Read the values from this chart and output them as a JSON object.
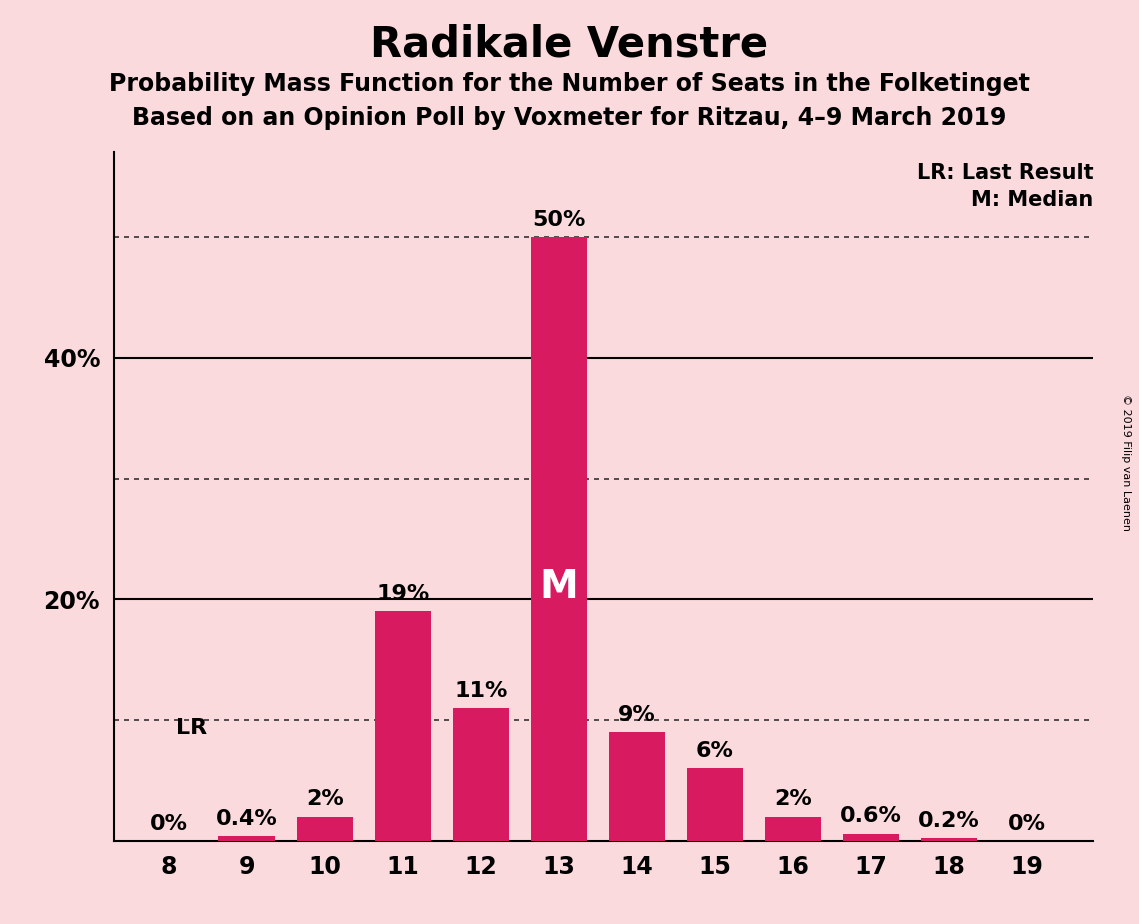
{
  "title": "Radikale Venstre",
  "subtitle1": "Probability Mass Function for the Number of Seats in the Folketinget",
  "subtitle2": "Based on an Opinion Poll by Voxmeter for Ritzau, 4–9 March 2019",
  "categories": [
    8,
    9,
    10,
    11,
    12,
    13,
    14,
    15,
    16,
    17,
    18,
    19
  ],
  "values": [
    0.0,
    0.4,
    2.0,
    19.0,
    11.0,
    50.0,
    9.0,
    6.0,
    2.0,
    0.6,
    0.2,
    0.0
  ],
  "bar_color": "#D81B60",
  "background_color": "#FADADD",
  "yticks": [
    20,
    40
  ],
  "ylim": [
    0,
    57
  ],
  "ylabel_texts": [
    "20%",
    "40%"
  ],
  "LR_seat": 8,
  "median_seat": 13,
  "LR_label": "LR",
  "median_label": "M",
  "legend_LR": "LR: Last Result",
  "legend_M": "M: Median",
  "copyright": "© 2019 Filip van Laenen",
  "value_labels": [
    "0%",
    "0.4%",
    "2%",
    "19%",
    "11%",
    "50%",
    "9%",
    "6%",
    "2%",
    "0.6%",
    "0.2%",
    "0%"
  ],
  "dotted_line_color": "#333333",
  "solid_line_yticks": [
    20,
    40
  ],
  "solid_line_color": "#000000",
  "dotted_line_yticks": [
    10,
    30,
    50
  ],
  "title_fontsize": 30,
  "subtitle_fontsize": 17,
  "tick_fontsize": 17,
  "label_fontsize": 16,
  "bar_width": 0.72
}
